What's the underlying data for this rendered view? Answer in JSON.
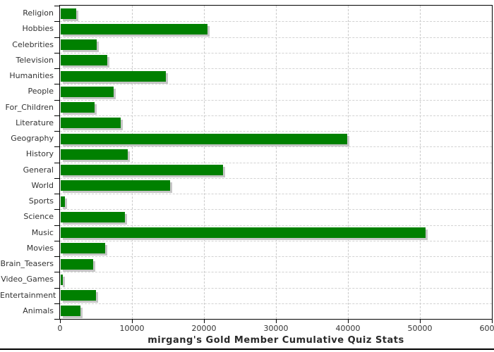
{
  "chart_data": {
    "type": "bar",
    "orientation": "horizontal",
    "title": "mirgang's Gold Member Cumulative Quiz Stats",
    "xlabel": "",
    "ylabel": "",
    "categories": [
      "Religion",
      "Hobbies",
      "Celebrities",
      "Television",
      "Humanities",
      "People",
      "For_Children",
      "Literature",
      "Geography",
      "History",
      "General",
      "World",
      "Sports",
      "Science",
      "Music",
      "Movies",
      "Brain_Teasers",
      "Video_Games",
      "Entertainment",
      "Animals"
    ],
    "values": [
      2200,
      20400,
      5000,
      6500,
      14600,
      7400,
      4700,
      8300,
      39800,
      9300,
      22500,
      15200,
      550,
      8900,
      50700,
      6200,
      4500,
      250,
      4900,
      2700
    ],
    "xlim": [
      0,
      60000
    ],
    "x_ticks": [
      0,
      10000,
      20000,
      30000,
      40000,
      50000,
      60000
    ],
    "x_tick_labels": [
      "0",
      "10000",
      "20000",
      "30000",
      "40000",
      "50000",
      "60000"
    ],
    "grid": "dashed vertical gridlines at each x tick and dashed horizontal gridlines between category rows",
    "legend_position": "none",
    "colors": {
      "bar": "#008000",
      "bar_shadow": "#c6c6c6",
      "grid": "#cccccc",
      "axis": "#000000",
      "text": "#333333",
      "background": "#ffffff"
    }
  }
}
